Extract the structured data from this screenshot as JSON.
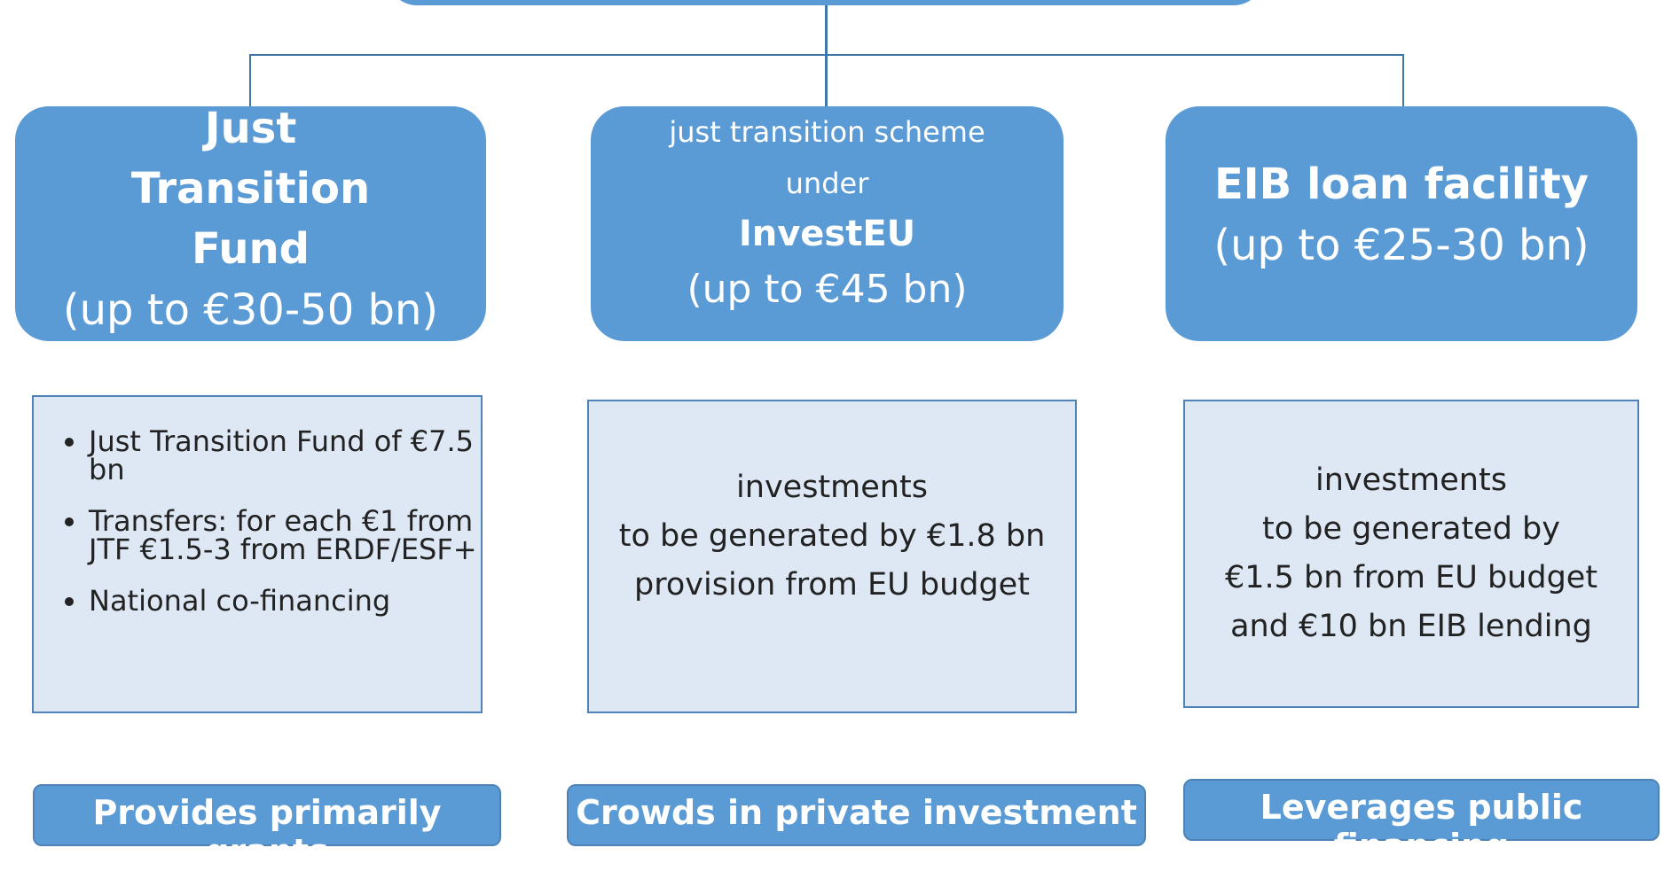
{
  "columns": [
    {
      "title": "Just Transition Fund",
      "amount": "(up to €30-50 bn)",
      "details": [
        "Just Transition Fund of €7.5 bn",
        "Transfers: for each €1 from JTF €1.5-3 from ERDF/ESF+",
        "National co-financing"
      ],
      "role": "Provides primarily grants"
    },
    {
      "intro": [
        "just transition scheme",
        "under"
      ],
      "title": "InvestEU",
      "amount": "(up to €45 bn)",
      "details": [
        "investments",
        "to be generated by €1.8 bn",
        "provision from EU budget"
      ],
      "role": "Crowds in private investment"
    },
    {
      "title": "EIB loan facility",
      "amount": "(up to €25-30 bn)",
      "details": [
        "investments",
        "to be generated by",
        "€1.5 bn from EU budget",
        "and €10 bn EIB lending"
      ],
      "role": "Leverages public financing"
    }
  ]
}
